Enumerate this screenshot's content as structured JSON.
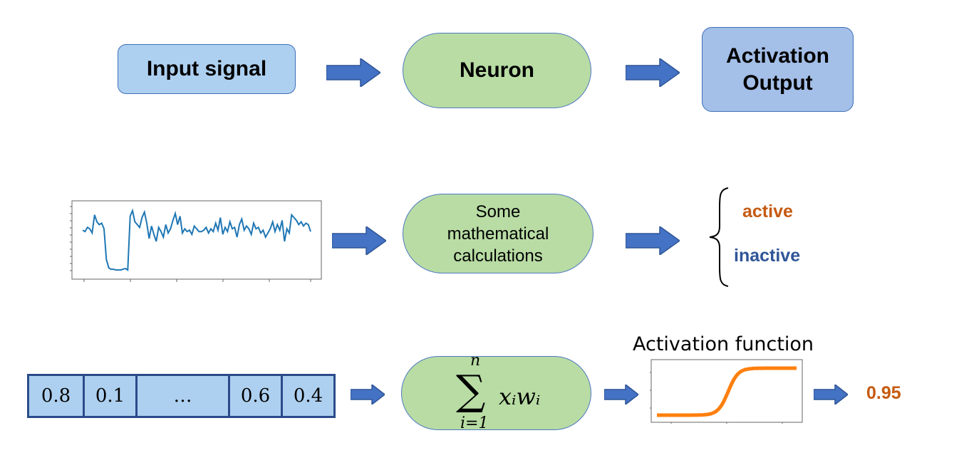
{
  "row1": {
    "input_label": "Input signal",
    "neuron_label": "Neuron",
    "output_line1": "Activation",
    "output_line2": "Output"
  },
  "row2": {
    "process_line1": "Some",
    "process_line2": "mathematical",
    "process_line3": "calculations",
    "state_active": "active",
    "state_inactive": "inactive",
    "signal_series": [
      0.62,
      0.6,
      0.66,
      0.64,
      0.58,
      0.84,
      0.74,
      0.7,
      0.72,
      0.64,
      0.2,
      0.08,
      0.06,
      0.06,
      0.05,
      0.05,
      0.05,
      0.06,
      0.07,
      0.05,
      0.82,
      0.9,
      0.74,
      0.7,
      0.66,
      0.8,
      0.88,
      0.72,
      0.5,
      0.68,
      0.56,
      0.46,
      0.66,
      0.6,
      0.52,
      0.7,
      0.58,
      0.64,
      0.76,
      0.86,
      0.7,
      0.82,
      0.58,
      0.64,
      0.6,
      0.62,
      0.56,
      0.68,
      0.64,
      0.6,
      0.6,
      0.62,
      0.66,
      0.58,
      0.64,
      0.6,
      0.72,
      0.62,
      0.8,
      0.56,
      0.66,
      0.6,
      0.74,
      0.64,
      0.66,
      0.52,
      0.7,
      0.78,
      0.62,
      0.68,
      0.64,
      0.56,
      0.72,
      0.64,
      0.66,
      0.58,
      0.62,
      0.52,
      0.58,
      0.64,
      0.74,
      0.6,
      0.7,
      0.62,
      0.76,
      0.46,
      0.64,
      0.58,
      0.84,
      0.8,
      0.76,
      0.7,
      0.74,
      0.68,
      0.72,
      0.7,
      0.6
    ]
  },
  "row3": {
    "vector": [
      "0.8",
      "0.1",
      "…",
      "0.6",
      "0.4"
    ],
    "sum_top": "n",
    "sum_bottom": "i=1",
    "sum_symbol": "∑",
    "term": "xᵢwᵢ",
    "activation_title": "Activation function",
    "result": "0.95"
  },
  "colors": {
    "active": "#c55a11",
    "inactive": "#2f5597",
    "result": "#c55a11",
    "arrow": "#4472c4",
    "signal": "#1f77b4",
    "sigmoid": "#ff7f0e"
  }
}
